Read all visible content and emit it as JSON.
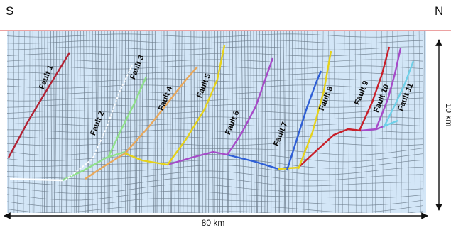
{
  "directions": {
    "left": "S",
    "right": "N"
  },
  "scale": {
    "horizontal": "80 km",
    "vertical": "10 km"
  },
  "faults": [
    {
      "id": 1,
      "label": "Fault 1",
      "color": "#b22234"
    },
    {
      "id": 2,
      "label": "Fault 2",
      "color": "#ffffff"
    },
    {
      "id": 3,
      "label": "Fault 3",
      "color": "#8fe08a"
    },
    {
      "id": 4,
      "label": "Fault 4",
      "color": "#e8a85c"
    },
    {
      "id": 5,
      "label": "Fault 5",
      "color": "#e6d21a"
    },
    {
      "id": 6,
      "label": "Fault 6",
      "color": "#a64bc8"
    },
    {
      "id": 7,
      "label": "Fault 7",
      "color": "#2f5fd6"
    },
    {
      "id": 8,
      "label": "Fault 8",
      "color": "#e6d21a"
    },
    {
      "id": 9,
      "label": "Fault 9",
      "color": "#c8202a"
    },
    {
      "id": 10,
      "label": "Fault 10",
      "color": "#a64bc8"
    },
    {
      "id": 11,
      "label": "Fault 11",
      "color": "#6fd0e8"
    }
  ],
  "colors": {
    "background": "#cfe3f5",
    "grid": "#6a7a8a",
    "surface": "#e06060"
  }
}
